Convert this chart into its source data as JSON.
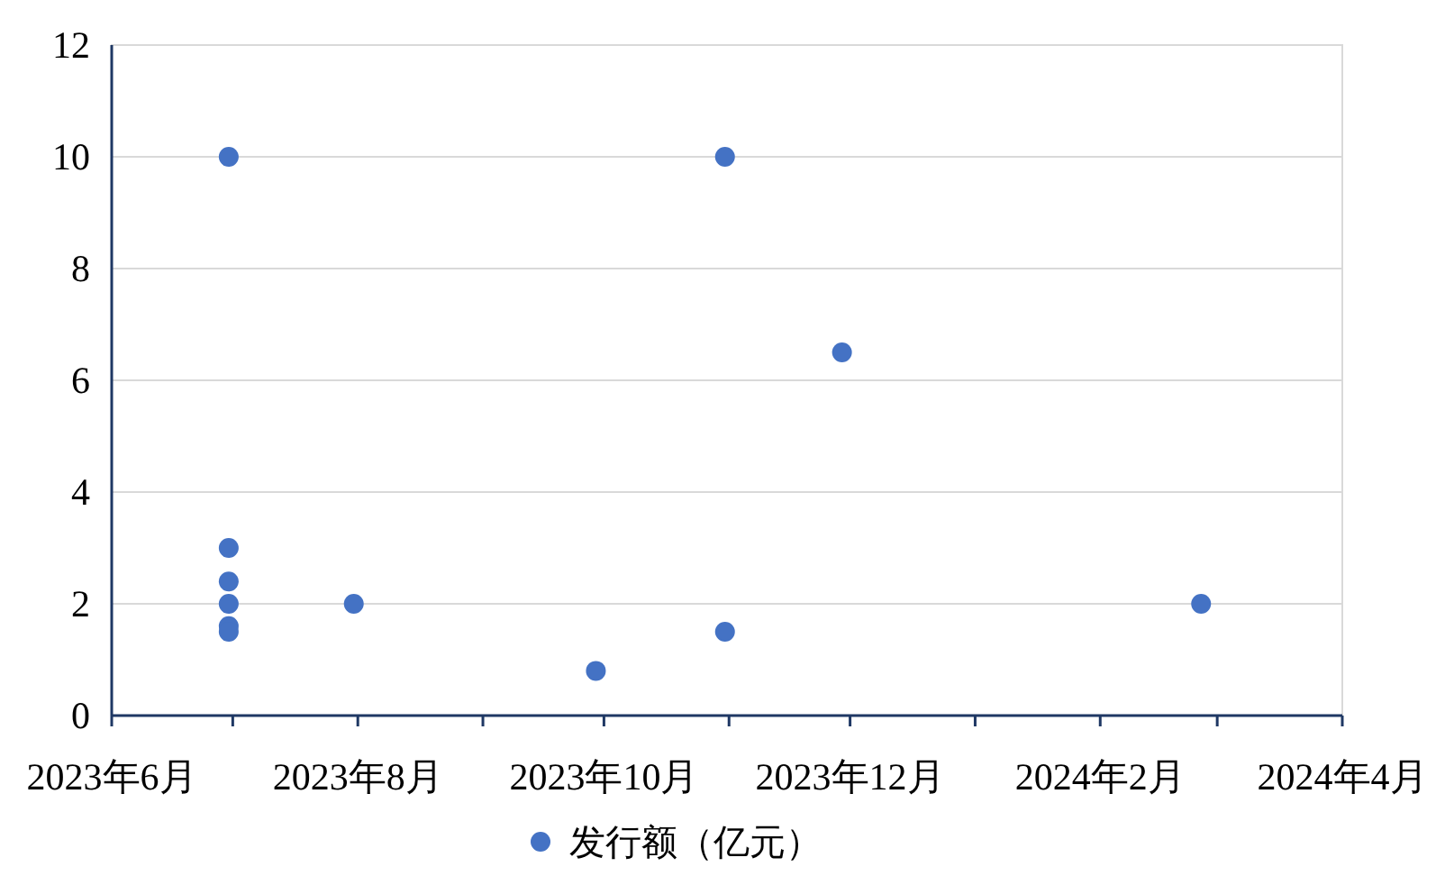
{
  "chart_data": {
    "type": "scatter",
    "x": [
      "2023-06-30",
      "2023-06-30",
      "2023-06-30",
      "2023-06-30",
      "2023-06-30",
      "2023-06-30",
      "2023-07-31",
      "2023-09-29",
      "2023-10-31",
      "2023-10-31",
      "2023-11-29",
      "2024-02-26"
    ],
    "series": [
      {
        "name": "发行额（亿元）",
        "color": "#4472c4",
        "values": [
          10,
          3,
          2.4,
          2,
          1.6,
          1.5,
          2,
          0.8,
          10,
          1.5,
          6.5,
          2
        ]
      }
    ],
    "xlim": [
      "2023-06-01",
      "2024-04-01"
    ],
    "xticks": [
      {
        "value": "2023-06-01",
        "label": "2023年6月"
      },
      {
        "value": "2023-07-01",
        "label": null
      },
      {
        "value": "2023-08-01",
        "label": "2023年8月"
      },
      {
        "value": "2023-09-01",
        "label": null
      },
      {
        "value": "2023-10-01",
        "label": "2023年10月"
      },
      {
        "value": "2023-11-01",
        "label": null
      },
      {
        "value": "2023-12-01",
        "label": "2023年12月"
      },
      {
        "value": "2024-01-01",
        "label": null
      },
      {
        "value": "2024-02-01",
        "label": "2024年2月"
      },
      {
        "value": "2024-03-01",
        "label": null
      },
      {
        "value": "2024-04-01",
        "label": "2024年4月"
      }
    ],
    "ylim": [
      0,
      12
    ],
    "yticks": [
      0,
      2,
      4,
      6,
      8,
      10,
      12
    ],
    "grid": "y",
    "legend": "bottom",
    "marker": "circle"
  }
}
